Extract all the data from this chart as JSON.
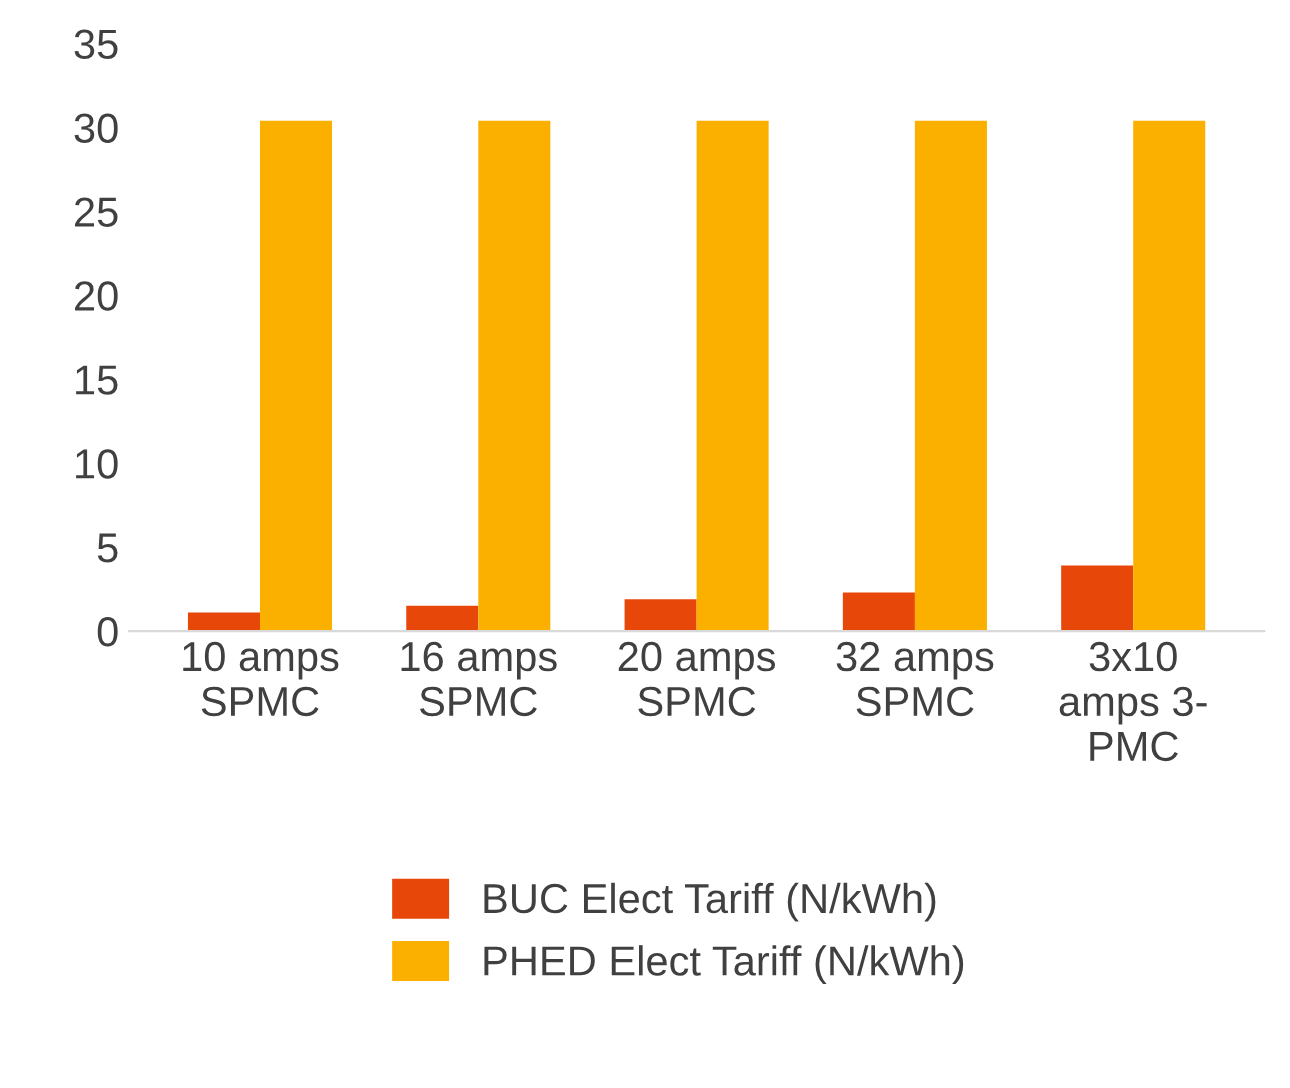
{
  "chart_data": {
    "type": "bar",
    "categories": [
      "10 amps\nSPMC",
      "16 amps\nSPMC",
      "20 amps\nSPMC",
      "32 amps\nSPMC",
      "3x10\namps 3-\nPMC"
    ],
    "series": [
      {
        "name": "BUC Elect Tariff (N/kWh)",
        "color": "#e8470a",
        "values": [
          1.1,
          1.5,
          1.9,
          2.3,
          3.9
        ]
      },
      {
        "name": "PHED Elect Tariff (N/kWh)",
        "color": "#fbb000",
        "values": [
          30.4,
          30.4,
          30.4,
          30.4,
          30.4
        ]
      }
    ],
    "ylim": [
      0,
      35
    ],
    "yticks": [
      0,
      5,
      10,
      15,
      20,
      25,
      30,
      35
    ],
    "grid": false,
    "legend": "bottom"
  }
}
